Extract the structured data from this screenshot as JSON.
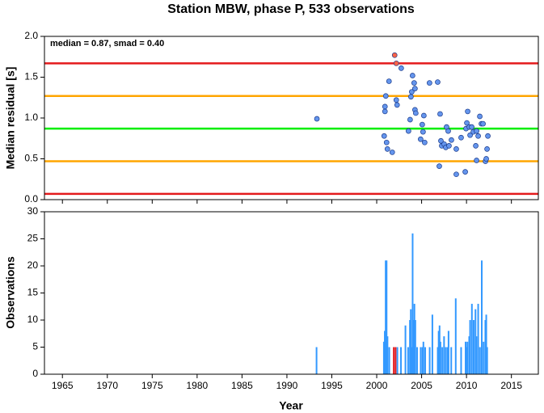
{
  "chart_data": [
    {
      "type": "scatter",
      "title": "Station MBW, phase P, 533 observations",
      "annotation": "median = 0.87, smad = 0.40",
      "ylabel": "Median residual [s]",
      "xlim": [
        1963,
        2018
      ],
      "ylim": [
        0,
        2
      ],
      "yticks": [
        {
          "value": 0,
          "label": "0.0"
        },
        0.5,
        {
          "value": 1,
          "label": "1.0"
        },
        1.5,
        {
          "value": 2,
          "label": "2.0"
        }
      ],
      "lines": [
        {
          "value": 1.67,
          "color": "#e41a1c"
        },
        {
          "value": 1.27,
          "color": "#ffa500"
        },
        {
          "value": 0.87,
          "color": "#00ee00"
        },
        {
          "value": 0.47,
          "color": "#ffa500"
        },
        {
          "value": 0.07,
          "color": "#e41a1c"
        }
      ],
      "series": [
        {
          "color": "#6495ed",
          "x": [
            1993.34,
            2000.83,
            2000.92,
            2000.92,
            2001.01,
            2001.1,
            2001.19,
            2001.37,
            2001.73,
            2002.18,
            2002.27,
            2002.73,
            2003.54,
            2003.72,
            2003.81,
            2003.9,
            2003.99,
            2004.17,
            2004.26,
            2004.26,
            2004.35,
            2004.89,
            2005.07,
            2005.16,
            2005.25,
            2005.34,
            2005.88,
            2006.79,
            2006.97,
            2007.06,
            2007.15,
            2007.24,
            2007.51,
            2007.69,
            2007.78,
            2007.96,
            2008.05,
            2008.32,
            2008.86,
            2008.86,
            2009.4,
            2009.86,
            2009.95,
            2010.04,
            2010.13,
            2010.31,
            2010.4,
            2010.58,
            2010.76,
            2011.03,
            2011.12,
            2011.12,
            2011.3,
            2011.48,
            2011.66,
            2011.84,
            2012.11,
            2012.2,
            2012.29,
            2012.38
          ],
          "values": [
            0.99,
            0.78,
            1.08,
            1.14,
            1.27,
            0.7,
            0.62,
            1.45,
            0.58,
            1.22,
            1.16,
            1.61,
            0.84,
            0.98,
            1.26,
            1.32,
            1.52,
            1.43,
            1.36,
            1.1,
            1.06,
            0.74,
            0.92,
            0.83,
            1.03,
            0.7,
            1.43,
            1.44,
            0.41,
            1.05,
            0.72,
            0.66,
            0.68,
            0.64,
            0.89,
            0.84,
            0.66,
            0.73,
            0.62,
            0.31,
            0.76,
            0.34,
            0.87,
            0.94,
            1.08,
            0.89,
            0.79,
            0.89,
            0.83,
            0.66,
            0.48,
            0.84,
            0.78,
            1.02,
            0.93,
            0.93,
            0.47,
            0.5,
            0.62,
            0.78
          ]
        },
        {
          "color": "#ff6347",
          "x": [
            2002.0,
            2002.18
          ],
          "values": [
            1.77,
            1.67
          ]
        }
      ]
    },
    {
      "type": "bar",
      "ylabel": "Observations",
      "xlabel": "Year",
      "xlim": [
        1963,
        2018
      ],
      "ylim": [
        0,
        30
      ],
      "yticks": [
        0,
        5,
        10,
        15,
        20,
        25,
        30
      ],
      "xticks": [
        1965,
        1970,
        1975,
        1980,
        1985,
        1990,
        1995,
        2000,
        2005,
        2010,
        2015
      ],
      "series": [
        {
          "color": "#3399ff",
          "x": [
            1993.3,
            2000.8,
            2000.9,
            2001.0,
            2001.1,
            2001.2,
            2001.4,
            2002.3,
            2002.7,
            2003.2,
            2003.5,
            2003.7,
            2003.8,
            2003.9,
            2004.0,
            2004.1,
            2004.2,
            2004.3,
            2004.5,
            2004.9,
            2005.1,
            2005.2,
            2005.4,
            2005.9,
            2006.2,
            2006.8,
            2006.9,
            2007.0,
            2007.1,
            2007.3,
            2007.5,
            2007.7,
            2007.9,
            2008.0,
            2008.3,
            2008.8,
            2009.4,
            2009.9,
            2010.0,
            2010.1,
            2010.3,
            2010.4,
            2010.6,
            2010.8,
            2011.0,
            2011.1,
            2011.3,
            2011.5,
            2011.7,
            2011.9,
            2012.1,
            2012.2,
            2012.3
          ],
          "values": [
            5,
            6,
            8,
            21,
            21,
            7,
            5,
            5,
            5,
            9,
            5,
            10,
            12,
            5,
            26,
            10,
            13,
            10,
            5,
            5,
            5,
            6,
            5,
            5,
            11,
            5,
            8,
            9,
            6,
            5,
            7,
            5,
            5,
            8,
            5,
            14,
            5,
            6,
            5,
            6,
            7,
            10,
            13,
            10,
            12,
            7,
            13,
            5,
            21,
            6,
            10,
            11,
            5
          ]
        },
        {
          "color": "#e41a1c",
          "x": [
            2001.9,
            2002.1
          ],
          "values": [
            5,
            5
          ]
        }
      ]
    }
  ]
}
